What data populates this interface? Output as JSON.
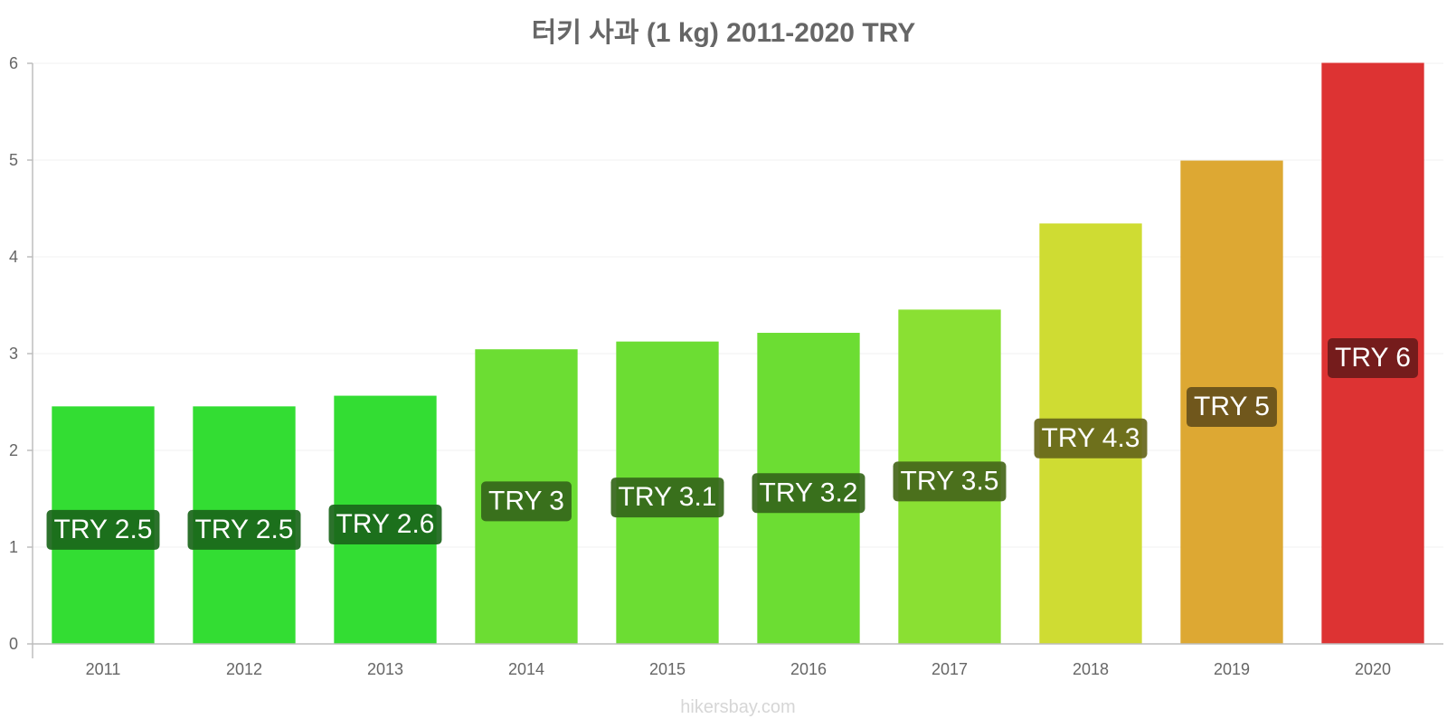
{
  "chart_data": {
    "type": "bar",
    "title": "터키 사과 (1 kg) 2011-2020 TRY",
    "xlabel": "",
    "ylabel": "",
    "categories": [
      "2011",
      "2012",
      "2013",
      "2014",
      "2015",
      "2016",
      "2017",
      "2018",
      "2019",
      "2020"
    ],
    "values": [
      2.45,
      2.45,
      2.56,
      3.04,
      3.12,
      3.21,
      3.45,
      4.34,
      4.99,
      6.0
    ],
    "data_labels": [
      "TRY 2.5",
      "TRY 2.5",
      "TRY 2.6",
      "TRY 3",
      "TRY 3.1",
      "TRY 3.2",
      "TRY 3.5",
      "TRY 4.3",
      "TRY 5",
      "TRY 6"
    ],
    "bar_colors": [
      "#33dd33",
      "#33dd33",
      "#33dd33",
      "#6cdd33",
      "#6cdd33",
      "#6cdd33",
      "#8ae033",
      "#cfdc33",
      "#dda833",
      "#dd3333"
    ],
    "label_bg_colors": [
      "#1a661a",
      "#1a661a",
      "#1a661a",
      "#35661a",
      "#35661a",
      "#35661a",
      "#45661a",
      "#66661a",
      "#66501a",
      "#6b1a1a"
    ],
    "ylim": [
      0,
      6
    ],
    "yticks": [
      0,
      1,
      2,
      3,
      4,
      5,
      6
    ],
    "grid": true,
    "legend": "none"
  },
  "watermark": "hikersbay.com"
}
